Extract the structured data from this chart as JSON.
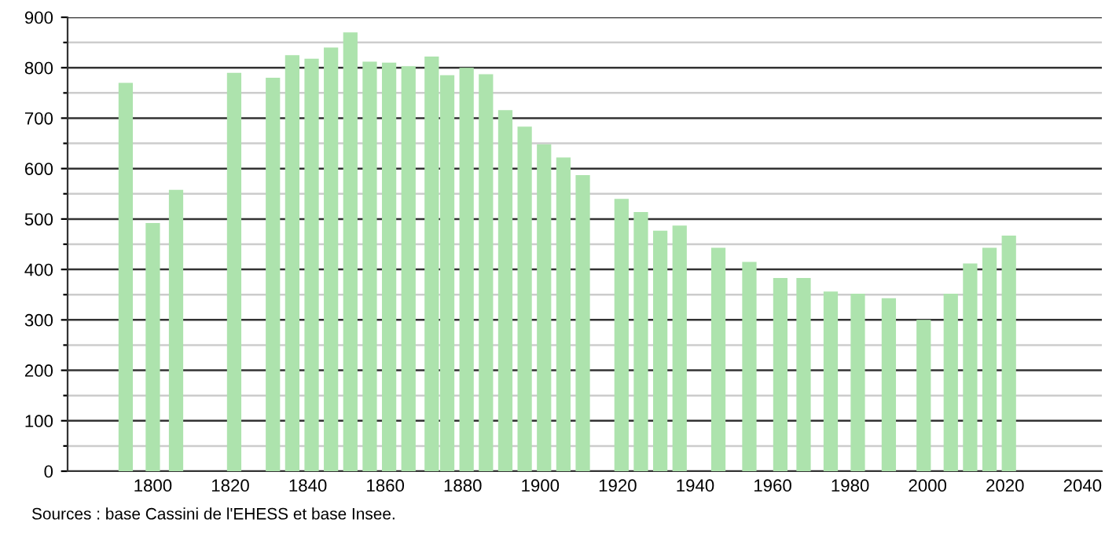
{
  "chart_data": {
    "type": "bar",
    "x": [
      1793,
      1800,
      1806,
      1821,
      1831,
      1836,
      1841,
      1846,
      1851,
      1856,
      1861,
      1866,
      1872,
      1876,
      1881,
      1886,
      1891,
      1896,
      1901,
      1906,
      1911,
      1921,
      1926,
      1931,
      1936,
      1946,
      1954,
      1962,
      1968,
      1975,
      1982,
      1990,
      1999,
      2006,
      2011,
      2016,
      2021
    ],
    "values": [
      770,
      492,
      558,
      790,
      780,
      825,
      818,
      840,
      870,
      812,
      810,
      803,
      822,
      785,
      800,
      787,
      716,
      683,
      648,
      622,
      587,
      540,
      514,
      477,
      487,
      443,
      415,
      383,
      383,
      356,
      352,
      343,
      300,
      352,
      412,
      443,
      467
    ],
    "color": "#ade3ad",
    "xlim": [
      1778,
      2045
    ],
    "xticks": [
      1800,
      1820,
      1840,
      1860,
      1880,
      1900,
      1920,
      1940,
      1960,
      1980,
      2000,
      2020,
      2040
    ],
    "ylim": [
      0,
      900
    ],
    "yticks": [
      0,
      {
        "value": 50,
        "label": null
      },
      100,
      {
        "value": 150,
        "label": null
      },
      200,
      {
        "value": 250,
        "label": null
      },
      300,
      {
        "value": 350,
        "label": null
      },
      400,
      {
        "value": 450,
        "label": null
      },
      500,
      {
        "value": 550,
        "label": null
      },
      600,
      {
        "value": 650,
        "label": null
      },
      700,
      {
        "value": 750,
        "label": null
      },
      800,
      {
        "value": 850,
        "label": null
      },
      900
    ],
    "grid": "y",
    "annotations": [
      "Sources : base Cassini de l'EHESS et base Insee."
    ]
  }
}
